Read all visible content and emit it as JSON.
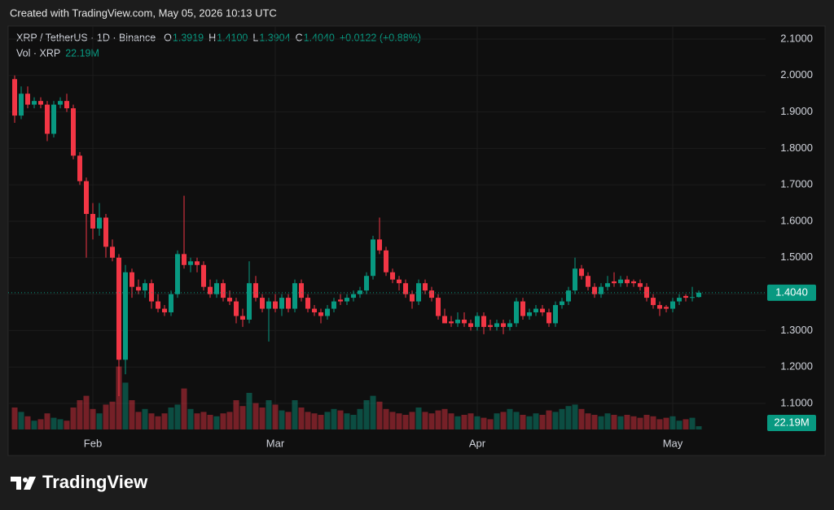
{
  "watermark": "Created with TradingView.com, May 05, 2026 10:13 UTC",
  "brand": "TradingView",
  "chart_data": {
    "type": "candlestick",
    "title": "XRP / TetherUS · 1D · Binance",
    "header": {
      "open_label": "O",
      "open": "1.3919",
      "high_label": "H",
      "high": "1.4100",
      "low_label": "L",
      "low": "1.3904",
      "close_label": "C",
      "close": "1.4040",
      "change": "+0.0122 (+0.88%)",
      "volume_title": "Vol · XRP"
    },
    "categories": [
      null,
      null,
      null,
      null,
      null,
      null,
      null,
      null,
      null,
      null,
      null,
      null,
      "Feb",
      null,
      null,
      null,
      null,
      null,
      null,
      null,
      null,
      null,
      null,
      null,
      null,
      null,
      null,
      null,
      null,
      null,
      null,
      null,
      null,
      null,
      null,
      null,
      null,
      null,
      null,
      null,
      "Mar",
      null,
      null,
      null,
      null,
      null,
      null,
      null,
      null,
      null,
      null,
      null,
      null,
      null,
      null,
      null,
      null,
      null,
      null,
      null,
      null,
      null,
      null,
      null,
      null,
      null,
      null,
      null,
      null,
      null,
      null,
      "Apr",
      null,
      null,
      null,
      null,
      null,
      null,
      null,
      null,
      null,
      null,
      null,
      null,
      null,
      null,
      null,
      null,
      null,
      null,
      null,
      null,
      null,
      null,
      null,
      null,
      null,
      null,
      null,
      null,
      null,
      "May",
      null,
      null,
      null,
      null
    ],
    "open": [
      1.99,
      1.89,
      1.95,
      1.92,
      1.93,
      1.92,
      1.84,
      1.92,
      1.93,
      1.91,
      1.78,
      1.71,
      1.62,
      1.58,
      1.61,
      1.53,
      1.5,
      1.22,
      1.46,
      1.42,
      1.41,
      1.43,
      1.38,
      1.36,
      1.35,
      1.4,
      1.51,
      1.48,
      1.49,
      1.48,
      1.42,
      1.4,
      1.43,
      1.39,
      1.38,
      1.34,
      1.33,
      1.43,
      1.39,
      1.36,
      1.38,
      1.36,
      1.39,
      1.36,
      1.43,
      1.39,
      1.36,
      1.35,
      1.34,
      1.36,
      1.385,
      1.38,
      1.39,
      1.4,
      1.41,
      1.45,
      1.55,
      1.52,
      1.46,
      1.44,
      1.43,
      1.4,
      1.38,
      1.43,
      1.41,
      1.39,
      1.34,
      1.325,
      1.32,
      1.33,
      1.32,
      1.31,
      1.34,
      1.315,
      1.31,
      1.32,
      1.31,
      1.32,
      1.38,
      1.34,
      1.35,
      1.36,
      1.35,
      1.32,
      1.37,
      1.38,
      1.41,
      1.47,
      1.45,
      1.42,
      1.4,
      1.42,
      1.435,
      1.43,
      1.44,
      1.435,
      1.43,
      1.42,
      1.39,
      1.37,
      1.365,
      1.36,
      1.38,
      1.395,
      1.39,
      1.3919
    ],
    "high": [
      2.0,
      1.97,
      1.97,
      1.94,
      1.94,
      1.93,
      1.93,
      1.94,
      1.95,
      1.92,
      1.79,
      1.72,
      1.65,
      1.65,
      1.62,
      1.55,
      1.51,
      1.48,
      1.47,
      1.44,
      1.44,
      1.44,
      1.4,
      1.37,
      1.41,
      1.52,
      1.67,
      1.5,
      1.5,
      1.49,
      1.44,
      1.44,
      1.44,
      1.41,
      1.39,
      1.36,
      1.49,
      1.45,
      1.4,
      1.39,
      1.4,
      1.4,
      1.4,
      1.44,
      1.44,
      1.4,
      1.37,
      1.36,
      1.37,
      1.39,
      1.4,
      1.4,
      1.41,
      1.42,
      1.46,
      1.56,
      1.61,
      1.53,
      1.47,
      1.45,
      1.44,
      1.41,
      1.44,
      1.44,
      1.42,
      1.4,
      1.36,
      1.34,
      1.35,
      1.35,
      1.33,
      1.35,
      1.35,
      1.33,
      1.33,
      1.33,
      1.33,
      1.39,
      1.39,
      1.36,
      1.37,
      1.37,
      1.36,
      1.38,
      1.39,
      1.42,
      1.5,
      1.48,
      1.46,
      1.43,
      1.43,
      1.45,
      1.46,
      1.45,
      1.45,
      1.44,
      1.44,
      1.43,
      1.4,
      1.38,
      1.37,
      1.39,
      1.4,
      1.4,
      1.42,
      1.41
    ],
    "low": [
      1.87,
      1.88,
      1.91,
      1.91,
      1.91,
      1.82,
      1.83,
      1.91,
      1.9,
      1.77,
      1.7,
      1.5,
      1.55,
      1.56,
      1.5,
      1.49,
      1.12,
      1.18,
      1.39,
      1.4,
      1.39,
      1.36,
      1.35,
      1.34,
      1.34,
      1.39,
      1.47,
      1.46,
      1.46,
      1.41,
      1.39,
      1.39,
      1.38,
      1.37,
      1.32,
      1.31,
      1.32,
      1.38,
      1.35,
      1.27,
      1.35,
      1.34,
      1.35,
      1.35,
      1.38,
      1.35,
      1.34,
      1.32,
      1.33,
      1.35,
      1.37,
      1.37,
      1.38,
      1.39,
      1.4,
      1.44,
      1.51,
      1.45,
      1.43,
      1.41,
      1.39,
      1.36,
      1.37,
      1.4,
      1.38,
      1.33,
      1.32,
      1.31,
      1.31,
      1.31,
      1.3,
      1.3,
      1.29,
      1.3,
      1.3,
      1.29,
      1.3,
      1.31,
      1.33,
      1.33,
      1.34,
      1.34,
      1.31,
      1.31,
      1.36,
      1.37,
      1.4,
      1.44,
      1.41,
      1.39,
      1.39,
      1.41,
      1.42,
      1.42,
      1.42,
      1.42,
      1.41,
      1.38,
      1.36,
      1.34,
      1.35,
      1.35,
      1.37,
      1.38,
      1.38,
      1.3904
    ],
    "close": [
      1.89,
      1.95,
      1.92,
      1.93,
      1.92,
      1.84,
      1.92,
      1.93,
      1.91,
      1.78,
      1.71,
      1.62,
      1.58,
      1.61,
      1.53,
      1.5,
      1.22,
      1.46,
      1.42,
      1.41,
      1.43,
      1.38,
      1.36,
      1.35,
      1.4,
      1.51,
      1.48,
      1.49,
      1.48,
      1.42,
      1.4,
      1.43,
      1.39,
      1.38,
      1.34,
      1.33,
      1.43,
      1.39,
      1.36,
      1.38,
      1.36,
      1.39,
      1.36,
      1.43,
      1.39,
      1.36,
      1.35,
      1.34,
      1.36,
      1.38,
      1.38,
      1.39,
      1.4,
      1.41,
      1.45,
      1.55,
      1.52,
      1.46,
      1.44,
      1.43,
      1.4,
      1.38,
      1.43,
      1.41,
      1.39,
      1.34,
      1.32,
      1.32,
      1.33,
      1.32,
      1.31,
      1.34,
      1.31,
      1.31,
      1.32,
      1.31,
      1.32,
      1.38,
      1.34,
      1.35,
      1.36,
      1.35,
      1.32,
      1.37,
      1.38,
      1.41,
      1.47,
      1.45,
      1.42,
      1.4,
      1.42,
      1.43,
      1.43,
      1.44,
      1.43,
      1.43,
      1.42,
      1.39,
      1.37,
      1.36,
      1.36,
      1.38,
      1.39,
      1.39,
      1.3919,
      1.404
    ],
    "volume": [
      150,
      120,
      90,
      60,
      70,
      110,
      80,
      70,
      60,
      150,
      200,
      230,
      140,
      110,
      170,
      190,
      430,
      320,
      200,
      120,
      140,
      110,
      90,
      110,
      150,
      170,
      280,
      140,
      110,
      120,
      100,
      90,
      110,
      120,
      200,
      160,
      250,
      180,
      150,
      200,
      170,
      130,
      120,
      200,
      150,
      120,
      110,
      100,
      120,
      140,
      130,
      110,
      100,
      140,
      200,
      230,
      190,
      140,
      120,
      110,
      100,
      120,
      150,
      120,
      110,
      130,
      140,
      110,
      90,
      100,
      110,
      90,
      80,
      70,
      110,
      120,
      140,
      120,
      100,
      90,
      110,
      100,
      130,
      120,
      140,
      160,
      170,
      140,
      110,
      100,
      90,
      110,
      100,
      90,
      100,
      90,
      80,
      100,
      90,
      70,
      80,
      90,
      60,
      70,
      80,
      22.19
    ],
    "last_price": {
      "value": 1.404,
      "label": "1.4040"
    },
    "last_volume": {
      "value": 22.19,
      "label": "22.19M"
    },
    "up_color": "#089981",
    "down_color": "#f23645",
    "ylim": [
      1.0286,
      2.1357
    ],
    "yticks": [
      {
        "value": 2.1,
        "label": "2.1000"
      },
      {
        "value": 2.0,
        "label": "2.0000"
      },
      {
        "value": 1.9,
        "label": "1.9000"
      },
      {
        "value": 1.8,
        "label": "1.8000"
      },
      {
        "value": 1.7,
        "label": "1.7000"
      },
      {
        "value": 1.6,
        "label": "1.6000"
      },
      {
        "value": 1.5,
        "label": "1.5000"
      },
      {
        "value": 1.4,
        "label": "1.4000"
      },
      {
        "value": 1.3,
        "label": "1.3000"
      },
      {
        "value": 1.2,
        "label": "1.2000"
      },
      {
        "value": 1.1,
        "label": "1.1000"
      }
    ],
    "grid": true
  }
}
